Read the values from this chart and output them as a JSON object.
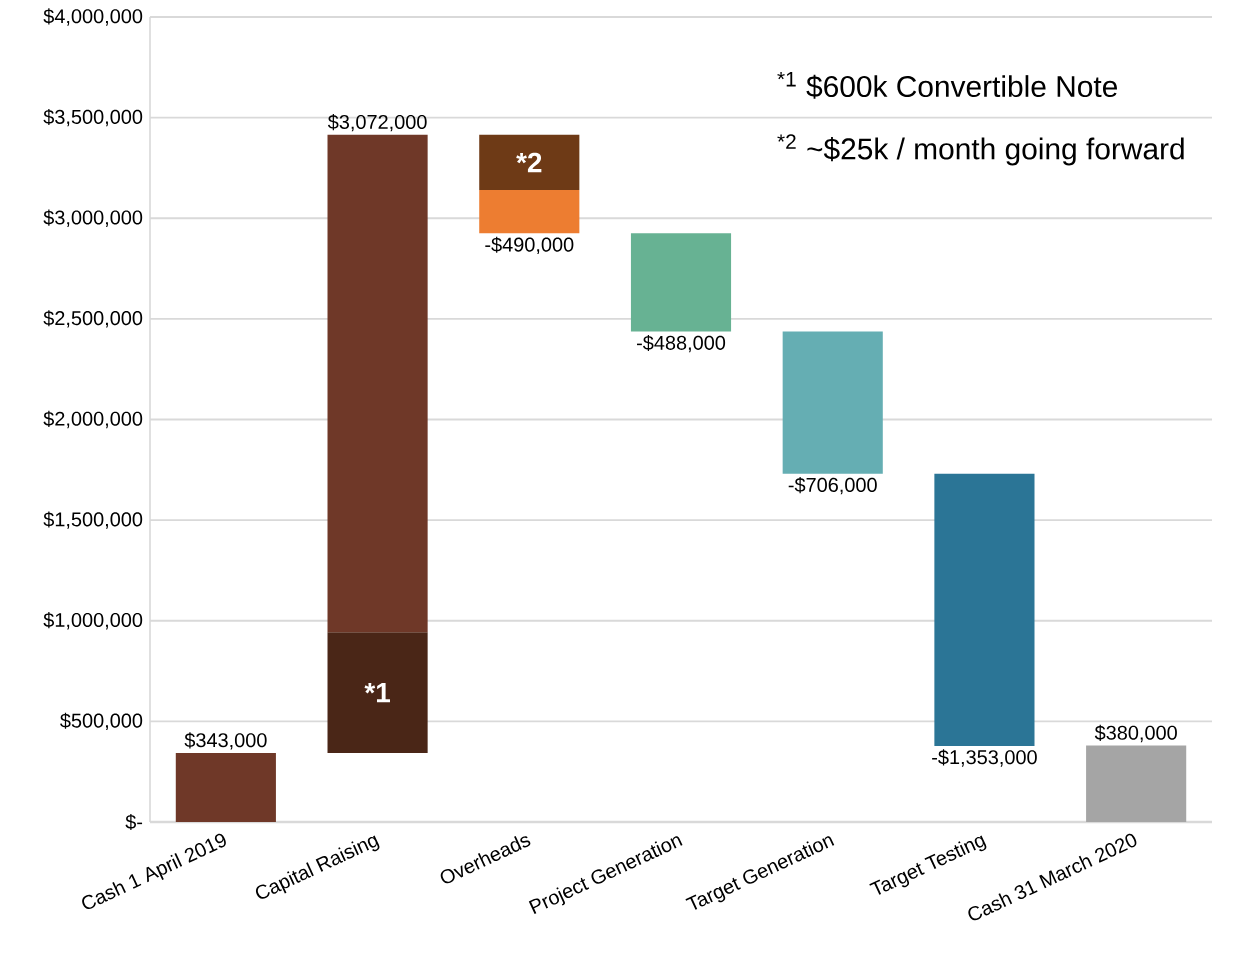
{
  "chart_data": {
    "type": "bar",
    "categories": [
      "Cash 1 April 2019",
      "Capital Raising",
      "Overheads",
      "Project Generation",
      "Target Generation",
      "Target Testing",
      "Cash 31 March 2020"
    ],
    "series": [
      {
        "colors": [
          null,
          "#4a2617",
          "#6e3a16",
          null,
          null,
          null,
          null
        ],
        "base": [
          null,
          343000,
          3415000,
          null,
          null,
          null,
          null
        ],
        "values": [
          null,
          600000,
          -275000,
          null,
          null,
          null,
          null
        ]
      },
      {
        "colors": [
          "#6f3828",
          "#6f3828",
          "#ed7d31",
          "#67b293",
          "#65aeb3",
          "#2b7596",
          "#a5a5a5"
        ],
        "base": [
          0,
          943000,
          3140000,
          2925000,
          2437000,
          1731000,
          0
        ],
        "values": [
          343000,
          2472000,
          -215000,
          -488000,
          -706000,
          -1353000,
          380000
        ]
      }
    ],
    "value_labels": [
      "$343,000",
      "$3,072,000",
      "-$490,000",
      "-$488,000",
      "-$706,000",
      "-$1,353,000",
      "$380,000"
    ],
    "ylim": [
      0,
      4000000
    ],
    "yticks": [
      {
        "value": 0,
        "label": "$-"
      },
      {
        "value": 500000,
        "label": "$500,000"
      },
      {
        "value": 1000000,
        "label": "$1,000,000"
      },
      {
        "value": 1500000,
        "label": "$1,500,000"
      },
      {
        "value": 2000000,
        "label": "$2,000,000"
      },
      {
        "value": 2500000,
        "label": "$2,500,000"
      },
      {
        "value": 3000000,
        "label": "$3,000,000"
      },
      {
        "value": 3500000,
        "label": "$3,500,000"
      },
      {
        "value": 4000000,
        "label": "$4,000,000"
      }
    ],
    "grid": "y",
    "annotations": [
      "*1",
      "*2",
      "$^{*1}$ $600k Convertible Note",
      "$^{*2}$ ~$25k / month going forward"
    ]
  }
}
